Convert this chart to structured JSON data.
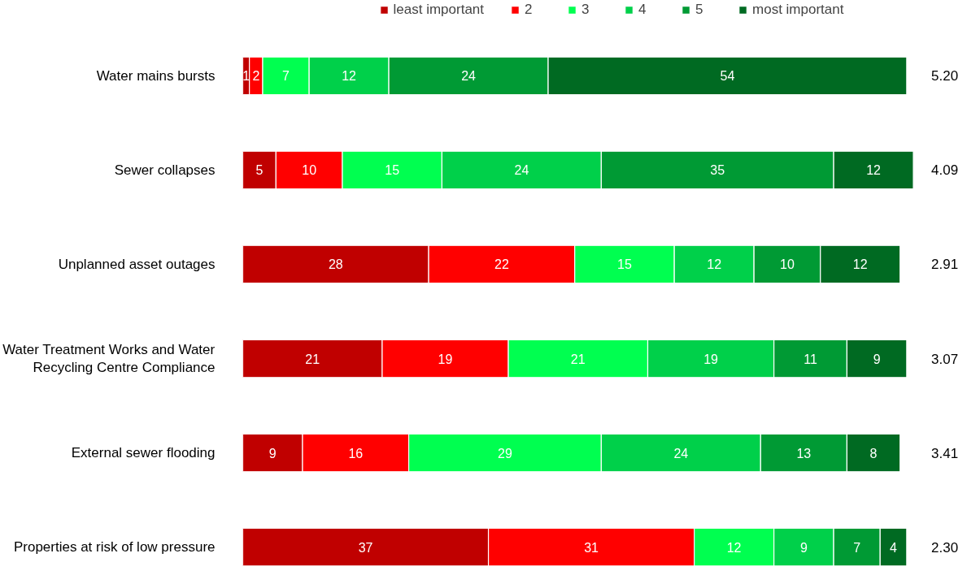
{
  "chart_data": {
    "type": "bar",
    "orientation": "horizontal",
    "stacked": true,
    "data_labels": true,
    "legend": "top",
    "grid": false,
    "tick_labels": "y",
    "categories": [
      "Water mains bursts",
      "Sewer collapses",
      "Unplanned asset outages",
      "Water Treatment Works and Water Recycling Centre Compliance",
      "External sewer flooding",
      "Properties at risk of low pressure"
    ],
    "series": [
      {
        "name": "least important",
        "color": "#c00000",
        "values": [
          1,
          5,
          28,
          21,
          9,
          37
        ]
      },
      {
        "name": "2",
        "color": "#ff0000",
        "values": [
          2,
          10,
          22,
          19,
          16,
          31
        ]
      },
      {
        "name": "3",
        "color": "#00ff50",
        "values": [
          7,
          15,
          15,
          21,
          29,
          12
        ]
      },
      {
        "name": "4",
        "color": "#00d04a",
        "values": [
          12,
          24,
          12,
          19,
          24,
          9
        ]
      },
      {
        "name": "5",
        "color": "#009a34",
        "values": [
          24,
          35,
          10,
          11,
          13,
          7
        ]
      },
      {
        "name": "most important",
        "color": "#006a22",
        "values": [
          54,
          12,
          12,
          9,
          8,
          4
        ]
      }
    ],
    "annotations": [
      "5.20",
      "4.09",
      "2.91",
      "3.07",
      "3.41",
      "2.30"
    ]
  }
}
